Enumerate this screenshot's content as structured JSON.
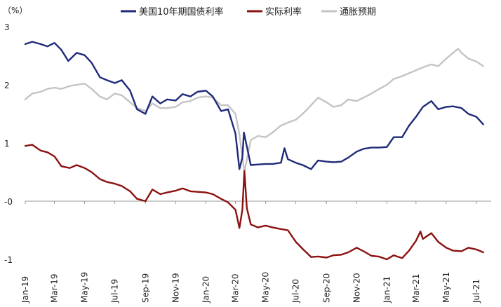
{
  "chart_data": {
    "type": "line",
    "unit_label": "（%）",
    "xlabel": "",
    "ylabel": "",
    "ylim": [
      -1,
      3
    ],
    "y_ticks": [
      {
        "value": 3,
        "label": "3",
        "color": "#222222"
      },
      {
        "value": 2,
        "label": "2",
        "color": "#222222"
      },
      {
        "value": 1,
        "label": "1",
        "color": "#222222"
      },
      {
        "value": 0,
        "label": "-0",
        "color": "#c0392b"
      },
      {
        "value": -1,
        "label": "-1",
        "color": "#222222"
      }
    ],
    "x_range": [
      "2019-01-01",
      "2021-07-31"
    ],
    "x_ticks": [
      {
        "date": "2019-01-01",
        "label": "Jan-19"
      },
      {
        "date": "2019-03-01",
        "label": "Mar-19"
      },
      {
        "date": "2019-05-01",
        "label": "May-19"
      },
      {
        "date": "2019-07-01",
        "label": "Jul-19"
      },
      {
        "date": "2019-09-01",
        "label": "Sep-19"
      },
      {
        "date": "2019-11-01",
        "label": "Nov-19"
      },
      {
        "date": "2020-01-01",
        "label": "Jan-20"
      },
      {
        "date": "2020-03-01",
        "label": "Mar-20"
      },
      {
        "date": "2020-05-01",
        "label": "May-20"
      },
      {
        "date": "2020-07-01",
        "label": "Jul-20"
      },
      {
        "date": "2020-09-01",
        "label": "Sep-20"
      },
      {
        "date": "2020-11-01",
        "label": "Nov-20"
      },
      {
        "date": "2021-01-01",
        "label": "Jan-21"
      },
      {
        "date": "2021-03-01",
        "label": "Mar-21"
      },
      {
        "date": "2021-05-01",
        "label": "May-21"
      },
      {
        "date": "2021-07-01",
        "label": "Jul-21"
      }
    ],
    "grid": false,
    "legend_position": "top",
    "series": [
      {
        "name": "美国10年期国债利率",
        "color": "#1f2a7a",
        "points": [
          [
            "2019-01-01",
            2.7
          ],
          [
            "2019-01-15",
            2.74
          ],
          [
            "2019-02-01",
            2.7
          ],
          [
            "2019-02-15",
            2.66
          ],
          [
            "2019-03-01",
            2.72
          ],
          [
            "2019-03-15",
            2.6
          ],
          [
            "2019-03-29",
            2.41
          ],
          [
            "2019-04-15",
            2.55
          ],
          [
            "2019-05-01",
            2.51
          ],
          [
            "2019-05-15",
            2.38
          ],
          [
            "2019-06-01",
            2.13
          ],
          [
            "2019-06-15",
            2.08
          ],
          [
            "2019-07-01",
            2.03
          ],
          [
            "2019-07-15",
            2.08
          ],
          [
            "2019-08-01",
            1.9
          ],
          [
            "2019-08-15",
            1.58
          ],
          [
            "2019-09-01",
            1.5
          ],
          [
            "2019-09-15",
            1.8
          ],
          [
            "2019-10-01",
            1.68
          ],
          [
            "2019-10-15",
            1.75
          ],
          [
            "2019-11-01",
            1.73
          ],
          [
            "2019-11-15",
            1.84
          ],
          [
            "2019-12-01",
            1.8
          ],
          [
            "2019-12-15",
            1.88
          ],
          [
            "2020-01-01",
            1.9
          ],
          [
            "2020-01-15",
            1.8
          ],
          [
            "2020-02-01",
            1.55
          ],
          [
            "2020-02-15",
            1.58
          ],
          [
            "2020-03-01",
            1.16
          ],
          [
            "2020-03-09",
            0.55
          ],
          [
            "2020-03-15",
            0.75
          ],
          [
            "2020-03-18",
            1.18
          ],
          [
            "2020-04-01",
            0.62
          ],
          [
            "2020-04-15",
            0.63
          ],
          [
            "2020-05-01",
            0.64
          ],
          [
            "2020-05-15",
            0.64
          ],
          [
            "2020-06-01",
            0.66
          ],
          [
            "2020-06-08",
            0.91
          ],
          [
            "2020-06-15",
            0.72
          ],
          [
            "2020-07-01",
            0.66
          ],
          [
            "2020-07-15",
            0.62
          ],
          [
            "2020-08-01",
            0.55
          ],
          [
            "2020-08-15",
            0.7
          ],
          [
            "2020-09-01",
            0.68
          ],
          [
            "2020-09-15",
            0.67
          ],
          [
            "2020-10-01",
            0.68
          ],
          [
            "2020-10-15",
            0.75
          ],
          [
            "2020-11-01",
            0.85
          ],
          [
            "2020-11-15",
            0.9
          ],
          [
            "2020-12-01",
            0.92
          ],
          [
            "2020-12-15",
            0.92
          ],
          [
            "2021-01-01",
            0.93
          ],
          [
            "2021-01-15",
            1.1
          ],
          [
            "2021-02-01",
            1.1
          ],
          [
            "2021-02-15",
            1.3
          ],
          [
            "2021-03-01",
            1.45
          ],
          [
            "2021-03-15",
            1.62
          ],
          [
            "2021-04-01",
            1.72
          ],
          [
            "2021-04-15",
            1.58
          ],
          [
            "2021-05-01",
            1.62
          ],
          [
            "2021-05-15",
            1.63
          ],
          [
            "2021-06-01",
            1.6
          ],
          [
            "2021-06-15",
            1.5
          ],
          [
            "2021-07-01",
            1.45
          ],
          [
            "2021-07-15",
            1.32
          ]
        ]
      },
      {
        "name": "实际利率",
        "color": "#8b1111",
        "points": [
          [
            "2019-01-01",
            0.95
          ],
          [
            "2019-01-15",
            0.97
          ],
          [
            "2019-02-01",
            0.87
          ],
          [
            "2019-02-15",
            0.84
          ],
          [
            "2019-03-01",
            0.77
          ],
          [
            "2019-03-15",
            0.6
          ],
          [
            "2019-04-01",
            0.57
          ],
          [
            "2019-04-15",
            0.62
          ],
          [
            "2019-05-01",
            0.57
          ],
          [
            "2019-05-15",
            0.5
          ],
          [
            "2019-06-01",
            0.38
          ],
          [
            "2019-06-15",
            0.33
          ],
          [
            "2019-07-01",
            0.3
          ],
          [
            "2019-07-15",
            0.26
          ],
          [
            "2019-08-01",
            0.17
          ],
          [
            "2019-08-15",
            0.04
          ],
          [
            "2019-09-01",
            0.0
          ],
          [
            "2019-09-15",
            0.2
          ],
          [
            "2019-10-01",
            0.12
          ],
          [
            "2019-10-15",
            0.15
          ],
          [
            "2019-11-01",
            0.18
          ],
          [
            "2019-11-15",
            0.22
          ],
          [
            "2019-12-01",
            0.17
          ],
          [
            "2019-12-15",
            0.16
          ],
          [
            "2020-01-01",
            0.15
          ],
          [
            "2020-01-15",
            0.12
          ],
          [
            "2020-02-01",
            0.04
          ],
          [
            "2020-02-15",
            -0.02
          ],
          [
            "2020-03-01",
            -0.15
          ],
          [
            "2020-03-09",
            -0.46
          ],
          [
            "2020-03-15",
            -0.15
          ],
          [
            "2020-03-19",
            0.52
          ],
          [
            "2020-03-24",
            -0.12
          ],
          [
            "2020-04-01",
            -0.4
          ],
          [
            "2020-04-15",
            -0.45
          ],
          [
            "2020-05-01",
            -0.42
          ],
          [
            "2020-05-15",
            -0.45
          ],
          [
            "2020-06-01",
            -0.48
          ],
          [
            "2020-06-15",
            -0.5
          ],
          [
            "2020-07-01",
            -0.7
          ],
          [
            "2020-07-15",
            -0.82
          ],
          [
            "2020-08-01",
            -0.96
          ],
          [
            "2020-08-15",
            -0.95
          ],
          [
            "2020-09-01",
            -0.97
          ],
          [
            "2020-09-15",
            -0.93
          ],
          [
            "2020-10-01",
            -0.92
          ],
          [
            "2020-10-15",
            -0.88
          ],
          [
            "2020-11-01",
            -0.8
          ],
          [
            "2020-11-15",
            -0.86
          ],
          [
            "2020-12-01",
            -0.94
          ],
          [
            "2020-12-15",
            -0.95
          ],
          [
            "2021-01-01",
            -1.0
          ],
          [
            "2021-01-15",
            -0.93
          ],
          [
            "2021-02-01",
            -0.98
          ],
          [
            "2021-02-15",
            -0.85
          ],
          [
            "2021-03-01",
            -0.68
          ],
          [
            "2021-03-10",
            -0.52
          ],
          [
            "2021-03-15",
            -0.65
          ],
          [
            "2021-04-01",
            -0.55
          ],
          [
            "2021-04-15",
            -0.7
          ],
          [
            "2021-05-01",
            -0.8
          ],
          [
            "2021-05-15",
            -0.85
          ],
          [
            "2021-06-01",
            -0.86
          ],
          [
            "2021-06-15",
            -0.8
          ],
          [
            "2021-07-01",
            -0.83
          ],
          [
            "2021-07-15",
            -0.88
          ]
        ]
      },
      {
        "name": "通胀预期",
        "color": "#c4c4c4",
        "points": [
          [
            "2019-01-01",
            1.75
          ],
          [
            "2019-01-15",
            1.85
          ],
          [
            "2019-02-01",
            1.88
          ],
          [
            "2019-02-15",
            1.93
          ],
          [
            "2019-03-01",
            1.95
          ],
          [
            "2019-03-15",
            1.93
          ],
          [
            "2019-04-01",
            1.98
          ],
          [
            "2019-04-15",
            2.0
          ],
          [
            "2019-05-01",
            2.02
          ],
          [
            "2019-05-15",
            1.93
          ],
          [
            "2019-06-01",
            1.8
          ],
          [
            "2019-06-15",
            1.75
          ],
          [
            "2019-07-01",
            1.85
          ],
          [
            "2019-07-15",
            1.82
          ],
          [
            "2019-08-01",
            1.7
          ],
          [
            "2019-08-15",
            1.6
          ],
          [
            "2019-09-01",
            1.55
          ],
          [
            "2019-09-15",
            1.68
          ],
          [
            "2019-10-01",
            1.6
          ],
          [
            "2019-10-15",
            1.6
          ],
          [
            "2019-11-01",
            1.62
          ],
          [
            "2019-11-15",
            1.7
          ],
          [
            "2019-12-01",
            1.72
          ],
          [
            "2019-12-15",
            1.78
          ],
          [
            "2020-01-01",
            1.8
          ],
          [
            "2020-01-15",
            1.78
          ],
          [
            "2020-02-01",
            1.65
          ],
          [
            "2020-02-15",
            1.65
          ],
          [
            "2020-03-01",
            1.5
          ],
          [
            "2020-03-09",
            1.15
          ],
          [
            "2020-03-19",
            0.5
          ],
          [
            "2020-04-01",
            1.05
          ],
          [
            "2020-04-15",
            1.12
          ],
          [
            "2020-05-01",
            1.1
          ],
          [
            "2020-05-15",
            1.18
          ],
          [
            "2020-06-01",
            1.3
          ],
          [
            "2020-06-15",
            1.35
          ],
          [
            "2020-07-01",
            1.4
          ],
          [
            "2020-07-15",
            1.5
          ],
          [
            "2020-08-01",
            1.65
          ],
          [
            "2020-08-15",
            1.78
          ],
          [
            "2020-09-01",
            1.7
          ],
          [
            "2020-09-15",
            1.62
          ],
          [
            "2020-10-01",
            1.65
          ],
          [
            "2020-10-15",
            1.75
          ],
          [
            "2020-11-01",
            1.72
          ],
          [
            "2020-11-15",
            1.78
          ],
          [
            "2020-12-01",
            1.85
          ],
          [
            "2020-12-15",
            1.92
          ],
          [
            "2021-01-01",
            2.0
          ],
          [
            "2021-01-15",
            2.1
          ],
          [
            "2021-02-01",
            2.15
          ],
          [
            "2021-02-15",
            2.2
          ],
          [
            "2021-03-01",
            2.25
          ],
          [
            "2021-03-15",
            2.3
          ],
          [
            "2021-04-01",
            2.35
          ],
          [
            "2021-04-15",
            2.32
          ],
          [
            "2021-05-01",
            2.45
          ],
          [
            "2021-05-15",
            2.55
          ],
          [
            "2021-05-25",
            2.62
          ],
          [
            "2021-06-01",
            2.55
          ],
          [
            "2021-06-15",
            2.45
          ],
          [
            "2021-07-01",
            2.4
          ],
          [
            "2021-07-15",
            2.32
          ]
        ]
      }
    ]
  }
}
